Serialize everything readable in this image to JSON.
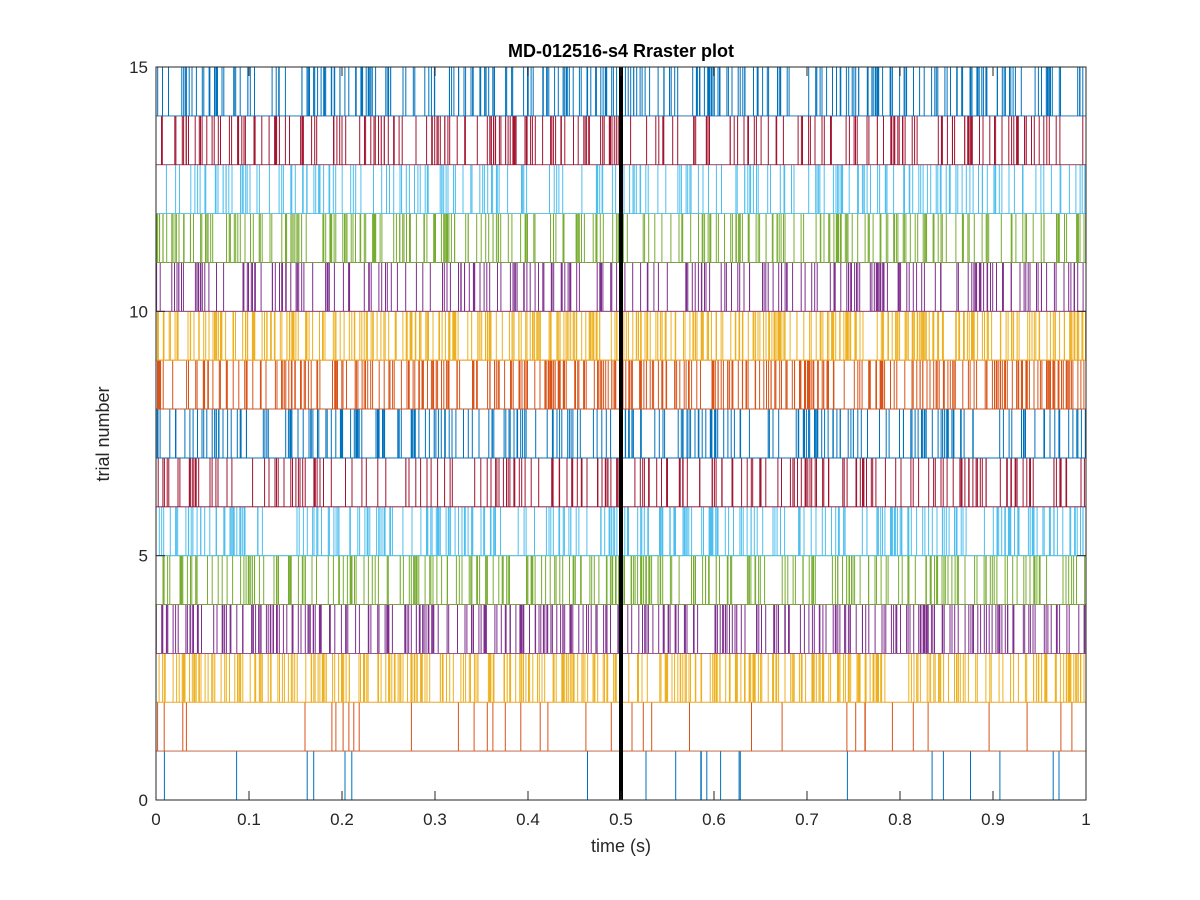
{
  "chart_data": {
    "type": "raster",
    "title": "MD-012516-s4 Rraster plot",
    "xlabel": "time (s)",
    "ylabel": "trial number",
    "xlim": [
      0,
      1
    ],
    "ylim": [
      0,
      15
    ],
    "xticks": [
      0,
      0.1,
      0.2,
      0.3,
      0.4,
      0.5,
      0.6,
      0.7,
      0.8,
      0.9,
      1
    ],
    "xtick_labels": [
      "0",
      "0.1",
      "0.2",
      "0.3",
      "0.4",
      "0.5",
      "0.6",
      "0.7",
      "0.8",
      "0.9",
      "1"
    ],
    "yticks": [
      0,
      5,
      10,
      15
    ],
    "ytick_labels": [
      "0",
      "5",
      "10",
      "15"
    ],
    "grid": false,
    "legend": "none",
    "marker_line": {
      "x": 0.5,
      "color": "#000000"
    },
    "trials": [
      {
        "trial": 1,
        "row": [
          0,
          1
        ],
        "color": "#0072bd",
        "density": 22
      },
      {
        "trial": 2,
        "row": [
          1,
          2
        ],
        "color": "#d95319",
        "density": 40
      },
      {
        "trial": 3,
        "row": [
          2,
          3
        ],
        "color": "#edb120",
        "density": 380
      },
      {
        "trial": 4,
        "row": [
          3,
          4
        ],
        "color": "#7e2f8e",
        "density": 330
      },
      {
        "trial": 5,
        "row": [
          4,
          5
        ],
        "color": "#77ac30",
        "density": 290
      },
      {
        "trial": 6,
        "row": [
          5,
          6
        ],
        "color": "#4dbeee",
        "density": 300
      },
      {
        "trial": 7,
        "row": [
          6,
          7
        ],
        "color": "#a2142f",
        "density": 220
      },
      {
        "trial": 8,
        "row": [
          7,
          8
        ],
        "color": "#0072bd",
        "density": 260
      },
      {
        "trial": 9,
        "row": [
          8,
          9
        ],
        "color": "#d95319",
        "density": 380
      },
      {
        "trial": 10,
        "row": [
          9,
          10
        ],
        "color": "#edb120",
        "density": 420
      },
      {
        "trial": 11,
        "row": [
          10,
          11
        ],
        "color": "#7e2f8e",
        "density": 250
      },
      {
        "trial": 12,
        "row": [
          11,
          12
        ],
        "color": "#77ac30",
        "density": 300
      },
      {
        "trial": 13,
        "row": [
          12,
          13
        ],
        "color": "#4dbeee",
        "density": 230
      },
      {
        "trial": 14,
        "row": [
          13,
          14
        ],
        "color": "#a2142f",
        "density": 240
      },
      {
        "trial": 15,
        "row": [
          14,
          15
        ],
        "color": "#0072bd",
        "density": 290
      }
    ]
  }
}
